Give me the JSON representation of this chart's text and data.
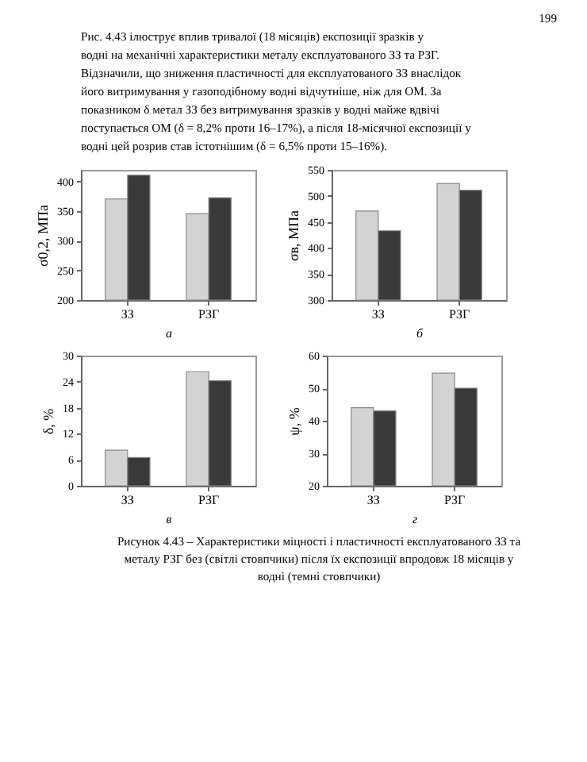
{
  "chart_data": [
    {
      "type": "bar",
      "categories": [
        "ЗЗ",
        "РЗГ"
      ],
      "xlabel": "а",
      "ylabel": "σ0,2, МПа",
      "ylim": [
        200,
        420
      ],
      "yticks": [
        200,
        250,
        300,
        350,
        400
      ],
      "grid": false,
      "series": [
        {
          "color": "#d3d3d3",
          "values": [
            371,
            346
          ]
        },
        {
          "color": "#3a3a3a",
          "values": [
            411,
            373
          ]
        }
      ],
      "annotations": [
        "199",
        "Рис. 4.43 ілюструє вплив тривалої (18 місяців) експозиції зразків у",
        "водні на механічні характеристики металу експлуатованого ЗЗ та РЗГ.",
        "Відзначили, що зниження пластичності для експлуатованого ЗЗ внаслідок",
        "його витримування у газоподібному водні відчутніше, ніж для ОМ. За",
        "показником δ метал ЗЗ без витримування зразків у водні майже вдвічі",
        "поступається ОМ (δ = 8,2% проти 16–17%), а після 18-місячної експозиції у",
        "водні цей розрив став істотнішим (δ = 6,5% проти 15–16%)."
      ]
    },
    {
      "type": "bar",
      "categories": [
        "ЗЗ",
        "РЗГ"
      ],
      "xlabel": "б",
      "ylabel": "σв, МПа",
      "ylim": [
        300,
        550
      ],
      "yticks": [
        300,
        350,
        400,
        450,
        500,
        550
      ],
      "grid": false,
      "series": [
        {
          "color": "#d3d3d3",
          "values": [
            471,
            524
          ]
        },
        {
          "color": "#3a3a3a",
          "values": [
            433,
            511
          ]
        }
      ]
    },
    {
      "type": "bar",
      "categories": [
        "ЗЗ",
        "РЗГ"
      ],
      "xlabel": "в",
      "ylabel": "δ, %",
      "ylim": [
        0,
        30
      ],
      "yticks": [
        0,
        6,
        12,
        18,
        24,
        30
      ],
      "grid": false,
      "series": [
        {
          "color": "#d3d3d3",
          "values": [
            8.2,
            26.3
          ]
        },
        {
          "color": "#3a3a3a",
          "values": [
            6.5,
            24.2
          ]
        }
      ]
    },
    {
      "type": "bar",
      "categories": [
        "ЗЗ",
        "РЗГ"
      ],
      "xlabel": "г",
      "ylabel": "ψ, %",
      "ylim": [
        20,
        60
      ],
      "yticks": [
        20,
        30,
        40,
        50,
        60
      ],
      "grid": false,
      "series": [
        {
          "color": "#d3d3d3",
          "values": [
            44,
            54.6
          ]
        },
        {
          "color": "#3a3a3a",
          "values": [
            43,
            50
          ]
        }
      ],
      "annotations": [
        "Рисунок 4.43 – Характеристики міцності і пластичності експлуатованого ЗЗ та",
        "металу РЗГ без (світлі стовпчики) після їх експозиції впродовж 18 місяців у",
        "водні (темні стовпчики)"
      ]
    }
  ]
}
